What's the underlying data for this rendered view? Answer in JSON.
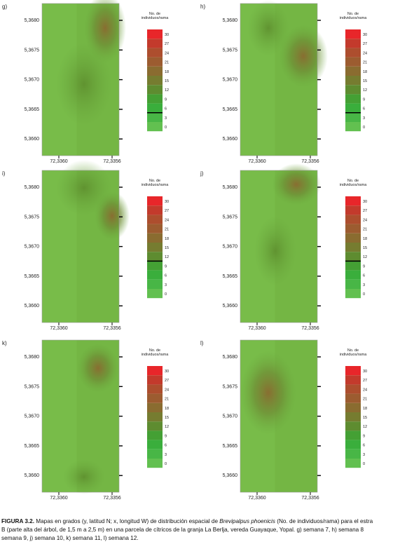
{
  "figure": {
    "panels": [
      {
        "label": "g)"
      },
      {
        "label": "h)"
      },
      {
        "label": "i)"
      },
      {
        "label": "j)"
      },
      {
        "label": "k)"
      },
      {
        "label": "l)"
      }
    ],
    "y_ticks": [
      "5,3680",
      "5,3675",
      "5,3670",
      "5,3665",
      "5,3660"
    ],
    "x_ticks": [
      "72,3360",
      "72,3356"
    ],
    "legend_title": [
      "No. de",
      "individuos/rama"
    ],
    "legend_labels": [
      "30",
      "27",
      "24",
      "21",
      "18",
      "15",
      "12",
      "9",
      "6",
      "3",
      "0"
    ]
  },
  "caption": {
    "label": "FIGURA 3.2.",
    "line1_a": " Mapas en grados (y, latitud N; x, longitud W) de distribución espacial de ",
    "species": "Brevipalpus phoenicis",
    "line1_b": " (No. de individuos/rama) para el estra",
    "line2": "B (parte alta del árbol, de 1,5 m a 2,5 m) en una parcela de cítricos de la granja La Berlja, vereda Guayaque, Yopal. g) semana 7, h) semana 8",
    "line3": "semana 9, j) semana 10, k) semana 11, l) semana 12."
  }
}
